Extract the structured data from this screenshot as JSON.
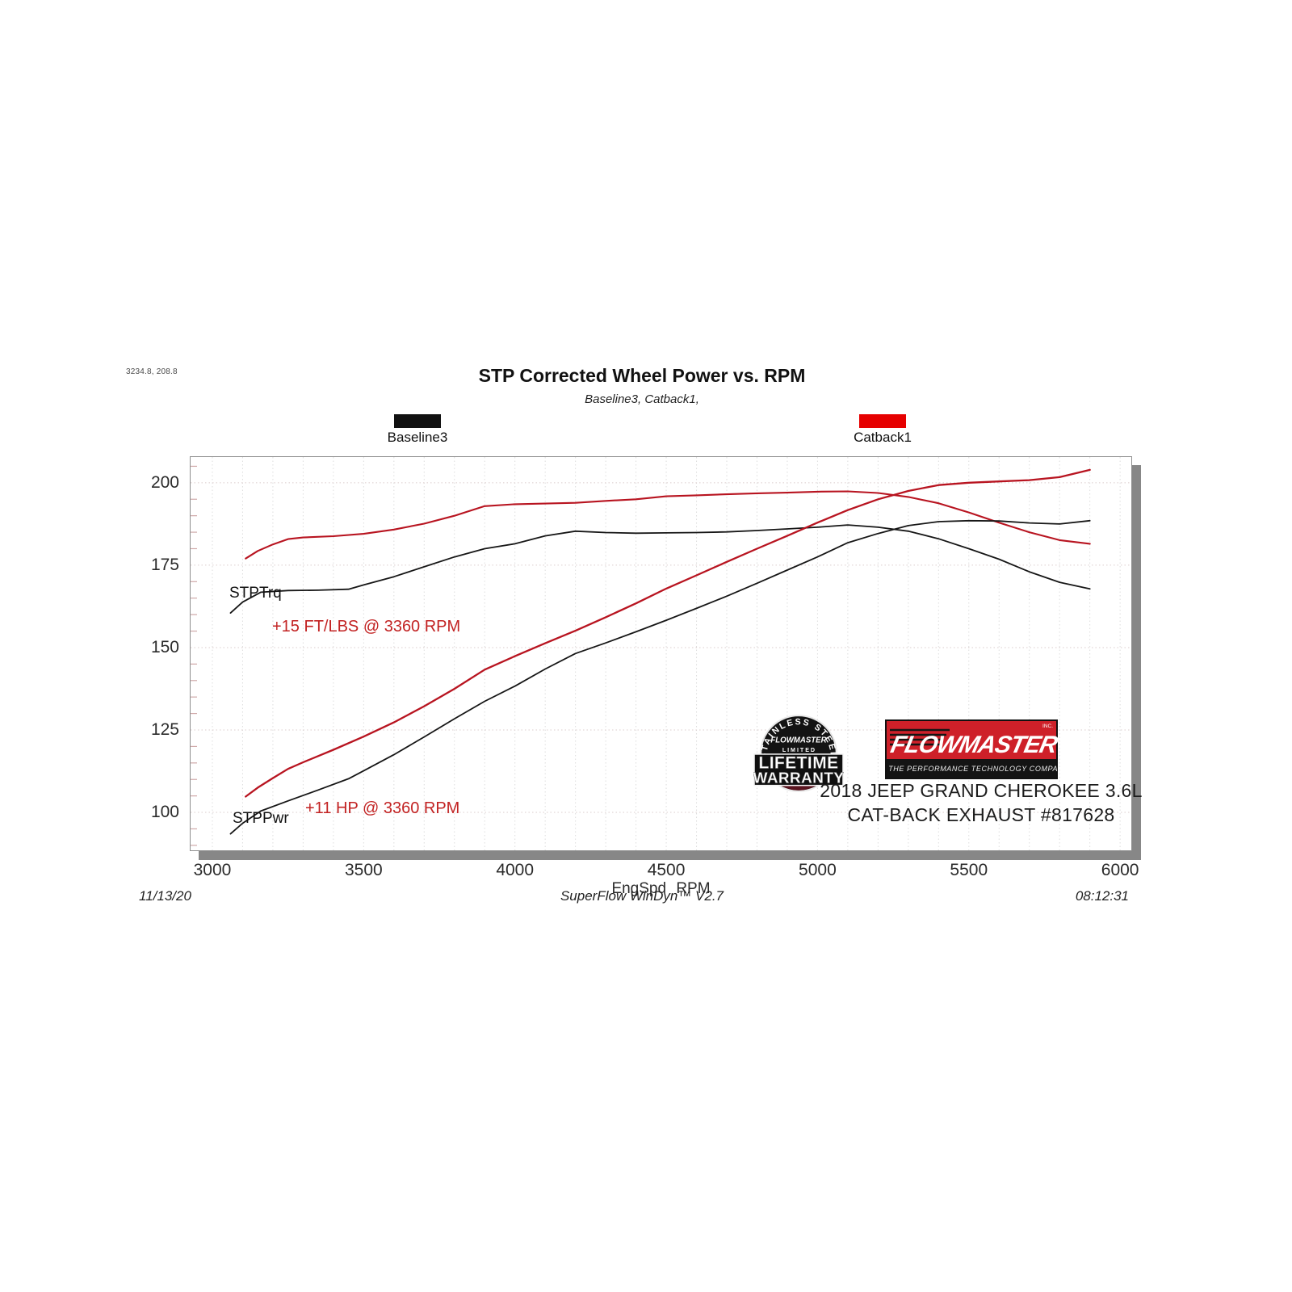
{
  "cursor_readout": "3234.8, 208.8",
  "chart": {
    "title": "STP Corrected Wheel Power vs. RPM",
    "subtitle": "Baseline3, Catback1,",
    "legend": [
      {
        "label": "Baseline3",
        "color": "#111111"
      },
      {
        "label": "Catback1",
        "color": "#e60000"
      }
    ]
  },
  "chart_data": {
    "type": "line",
    "title": "STP Corrected Wheel Power vs. RPM",
    "subtitle": "Baseline3, Catback1,",
    "xlabel": "EngSpd RPM",
    "ylabel": "",
    "xlim": [
      2928,
      6037
    ],
    "ylim": [
      88.5,
      207.8
    ],
    "x_ticks": [
      3000,
      3500,
      4000,
      4500,
      5000,
      5500,
      6000
    ],
    "y_ticks": [
      100,
      125,
      150,
      175,
      200
    ],
    "x_grid_step": 100,
    "y_minor_step": 5,
    "grid": true,
    "legend_position": "top",
    "series": [
      {
        "name": "Baseline3 STPTrq",
        "color": "#161616",
        "width": 1.8,
        "points": [
          [
            3060,
            160.5
          ],
          [
            3100,
            163.8
          ],
          [
            3160,
            166.8
          ],
          [
            3250,
            167.3
          ],
          [
            3350,
            167.4
          ],
          [
            3450,
            167.7
          ],
          [
            3500,
            169.0
          ],
          [
            3600,
            171.5
          ],
          [
            3700,
            174.5
          ],
          [
            3800,
            177.5
          ],
          [
            3900,
            180.0
          ],
          [
            4000,
            181.5
          ],
          [
            4100,
            183.9
          ],
          [
            4200,
            185.3
          ],
          [
            4300,
            184.9
          ],
          [
            4400,
            184.7
          ],
          [
            4500,
            184.8
          ],
          [
            4600,
            184.9
          ],
          [
            4700,
            185.1
          ],
          [
            4800,
            185.5
          ],
          [
            4900,
            186.0
          ],
          [
            5000,
            186.5
          ],
          [
            5100,
            187.2
          ],
          [
            5200,
            186.5
          ],
          [
            5300,
            185.3
          ],
          [
            5400,
            183.0
          ],
          [
            5500,
            180.0
          ],
          [
            5600,
            176.8
          ],
          [
            5700,
            173.0
          ],
          [
            5800,
            169.8
          ],
          [
            5900,
            167.8
          ]
        ]
      },
      {
        "name": "Catback1 STPTrq",
        "color": "#b81420",
        "width": 2.1,
        "points": [
          [
            3110,
            177.0
          ],
          [
            3150,
            179.3
          ],
          [
            3200,
            181.3
          ],
          [
            3250,
            182.9
          ],
          [
            3300,
            183.4
          ],
          [
            3400,
            183.8
          ],
          [
            3500,
            184.5
          ],
          [
            3600,
            185.8
          ],
          [
            3700,
            187.6
          ],
          [
            3800,
            190.0
          ],
          [
            3900,
            192.9
          ],
          [
            4000,
            193.5
          ],
          [
            4100,
            193.7
          ],
          [
            4200,
            193.9
          ],
          [
            4300,
            194.5
          ],
          [
            4400,
            195.0
          ],
          [
            4500,
            195.9
          ],
          [
            4600,
            196.2
          ],
          [
            4700,
            196.5
          ],
          [
            4800,
            196.8
          ],
          [
            4900,
            197.0
          ],
          [
            5000,
            197.3
          ],
          [
            5100,
            197.4
          ],
          [
            5200,
            196.9
          ],
          [
            5300,
            195.7
          ],
          [
            5400,
            193.8
          ],
          [
            5500,
            191.0
          ],
          [
            5600,
            187.9
          ],
          [
            5700,
            185.0
          ],
          [
            5800,
            182.6
          ],
          [
            5900,
            181.5
          ]
        ]
      },
      {
        "name": "Baseline3 STPPwr",
        "color": "#161616",
        "width": 1.8,
        "points": [
          [
            3060,
            93.5
          ],
          [
            3100,
            96.7
          ],
          [
            3160,
            100.4
          ],
          [
            3250,
            103.5
          ],
          [
            3350,
            106.8
          ],
          [
            3450,
            110.2
          ],
          [
            3500,
            112.6
          ],
          [
            3600,
            117.5
          ],
          [
            3700,
            122.9
          ],
          [
            3800,
            128.4
          ],
          [
            3900,
            133.7
          ],
          [
            4000,
            138.3
          ],
          [
            4100,
            143.5
          ],
          [
            4200,
            148.2
          ],
          [
            4300,
            151.4
          ],
          [
            4400,
            154.8
          ],
          [
            4500,
            158.3
          ],
          [
            4600,
            161.9
          ],
          [
            4700,
            165.6
          ],
          [
            4800,
            169.5
          ],
          [
            4900,
            173.5
          ],
          [
            5000,
            177.5
          ],
          [
            5100,
            181.8
          ],
          [
            5200,
            184.6
          ],
          [
            5300,
            187.0
          ],
          [
            5400,
            188.2
          ],
          [
            5500,
            188.5
          ],
          [
            5600,
            188.4
          ],
          [
            5700,
            187.8
          ],
          [
            5800,
            187.5
          ],
          [
            5900,
            188.5
          ]
        ]
      },
      {
        "name": "Catback1 STPPwr",
        "color": "#b81420",
        "width": 2.3,
        "points": [
          [
            3110,
            104.8
          ],
          [
            3150,
            107.5
          ],
          [
            3200,
            110.4
          ],
          [
            3250,
            113.2
          ],
          [
            3300,
            115.2
          ],
          [
            3400,
            119.0
          ],
          [
            3500,
            123.0
          ],
          [
            3600,
            127.3
          ],
          [
            3700,
            132.2
          ],
          [
            3800,
            137.5
          ],
          [
            3900,
            143.3
          ],
          [
            4000,
            147.4
          ],
          [
            4100,
            151.3
          ],
          [
            4200,
            155.1
          ],
          [
            4300,
            159.2
          ],
          [
            4400,
            163.4
          ],
          [
            4500,
            167.9
          ],
          [
            4600,
            171.9
          ],
          [
            4700,
            176.0
          ],
          [
            4800,
            180.0
          ],
          [
            4900,
            183.9
          ],
          [
            5000,
            187.9
          ],
          [
            5100,
            191.7
          ],
          [
            5200,
            195.0
          ],
          [
            5300,
            197.5
          ],
          [
            5400,
            199.3
          ],
          [
            5500,
            200.0
          ],
          [
            5600,
            200.4
          ],
          [
            5700,
            200.8
          ],
          [
            5800,
            201.7
          ],
          [
            5900,
            203.9
          ]
        ]
      }
    ],
    "annotations": [
      {
        "text": "STPTrq",
        "color": "#111111"
      },
      {
        "text": "+15 FT/LBS @ 3360 RPM",
        "color": "#c22222"
      },
      {
        "text": "STPPwr",
        "color": "#111111"
      },
      {
        "text": "+11 HP @ 3360 RPM",
        "color": "#c22222"
      }
    ]
  },
  "branding": {
    "badge": {
      "arc": "STAINLESS STEEL",
      "brand": "FLOWMASTER",
      "limited": "L I M I T E D",
      "line1": "LIFETIME",
      "line2": "WARRANTY"
    },
    "logo": {
      "name": "FLOWMASTER",
      "inc": "INC.",
      "tagline": "THE PERFORMANCE TECHNOLOGY COMPANY",
      "red": "#ce2029"
    },
    "vehicle_line1": "2018 JEEP GRAND CHEROKEE 3.6L",
    "vehicle_line2": "CAT-BACK EXHAUST #817628"
  },
  "footer": {
    "date": "11/13/20",
    "app": "SuperFlow WinDyn™ V2.7",
    "time": "08:12:31"
  }
}
